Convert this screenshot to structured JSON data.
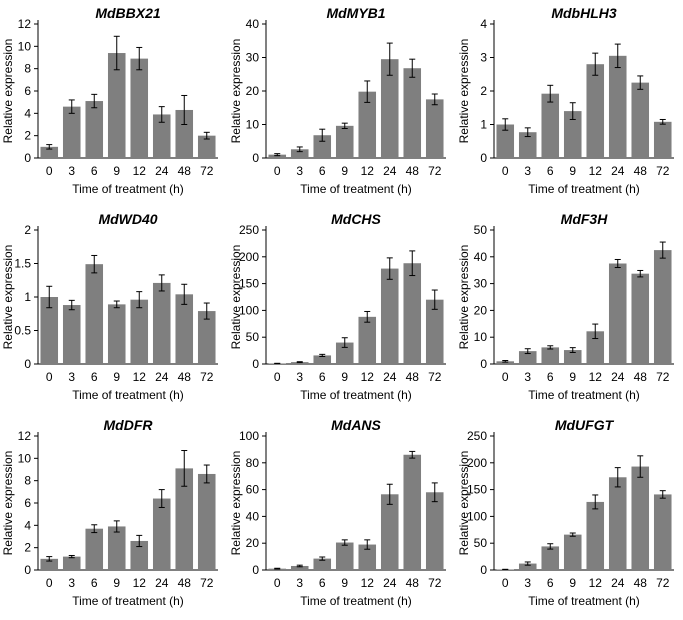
{
  "chart_data": [
    {
      "type": "bar",
      "title": "MdBBX21",
      "xlabel": "Time of treatment (h)",
      "ylabel": "Relative expression",
      "categories": [
        "0",
        "3",
        "6",
        "9",
        "12",
        "24",
        "48",
        "72"
      ],
      "values": [
        1.0,
        4.6,
        5.1,
        9.4,
        8.9,
        3.9,
        4.3,
        2.0
      ],
      "errors": [
        0.2,
        0.6,
        0.6,
        1.5,
        1.0,
        0.7,
        1.3,
        0.3
      ],
      "ylim": [
        0,
        12
      ],
      "yticks": [
        "0",
        "2",
        "4",
        "6",
        "8",
        "10",
        "12"
      ]
    },
    {
      "type": "bar",
      "title": "MdMYB1",
      "xlabel": "Time of treatment (h)",
      "ylabel": "Relative expression",
      "categories": [
        "0",
        "3",
        "6",
        "9",
        "12",
        "24",
        "48",
        "72"
      ],
      "values": [
        1.0,
        2.6,
        6.8,
        9.6,
        19.8,
        29.5,
        26.8,
        17.5
      ],
      "errors": [
        0.3,
        0.7,
        1.8,
        0.8,
        3.2,
        4.8,
        2.7,
        1.6
      ],
      "ylim": [
        0,
        40
      ],
      "yticks": [
        "0",
        "10",
        "20",
        "30",
        "40"
      ]
    },
    {
      "type": "bar",
      "title": "MdbHLH3",
      "xlabel": "Time of treatment (h)",
      "ylabel": "Relative expression",
      "categories": [
        "0",
        "3",
        "6",
        "9",
        "12",
        "24",
        "48",
        "72"
      ],
      "values": [
        1.0,
        0.77,
        1.92,
        1.4,
        2.8,
        3.05,
        2.25,
        1.08
      ],
      "errors": [
        0.17,
        0.13,
        0.25,
        0.25,
        0.33,
        0.35,
        0.2,
        0.07
      ],
      "ylim": [
        0,
        4
      ],
      "yticks": [
        "0",
        "1",
        "2",
        "3",
        "4"
      ]
    },
    {
      "type": "bar",
      "title": "MdWD40",
      "xlabel": "Time of treatment (h)",
      "ylabel": "Relative expression",
      "categories": [
        "0",
        "3",
        "6",
        "9",
        "12",
        "24",
        "48",
        "72"
      ],
      "values": [
        1.0,
        0.88,
        1.49,
        0.89,
        0.96,
        1.21,
        1.04,
        0.79
      ],
      "errors": [
        0.16,
        0.07,
        0.13,
        0.05,
        0.12,
        0.12,
        0.15,
        0.12
      ],
      "ylim": [
        0,
        2
      ],
      "yticks": [
        "0",
        "0.5",
        "1",
        "1.5",
        "2"
      ]
    },
    {
      "type": "bar",
      "title": "MdCHS",
      "xlabel": "Time of treatment (h)",
      "ylabel": "Relative expression",
      "categories": [
        "0",
        "3",
        "6",
        "9",
        "12",
        "24",
        "48",
        "72"
      ],
      "values": [
        1.0,
        3.5,
        16,
        40,
        88,
        178,
        188,
        120
      ],
      "errors": [
        0.3,
        0.8,
        2,
        9,
        10,
        20,
        23,
        18
      ],
      "ylim": [
        0,
        250
      ],
      "yticks": [
        "0",
        "50",
        "100",
        "150",
        "200",
        "250"
      ]
    },
    {
      "type": "bar",
      "title": "MdF3H",
      "xlabel": "Time of treatment (h)",
      "ylabel": "Relative expression",
      "categories": [
        "0",
        "3",
        "6",
        "9",
        "12",
        "24",
        "48",
        "72"
      ],
      "values": [
        1.0,
        4.8,
        6.2,
        5.2,
        12.2,
        37.5,
        33.7,
        42.5
      ],
      "errors": [
        0.3,
        0.9,
        0.6,
        0.9,
        2.7,
        1.5,
        1.2,
        3.0
      ],
      "ylim": [
        0,
        50
      ],
      "yticks": [
        "0",
        "10",
        "20",
        "30",
        "40",
        "50"
      ]
    },
    {
      "type": "bar",
      "title": "MdDFR",
      "xlabel": "Time of treatment (h)",
      "ylabel": "Relative expression",
      "categories": [
        "0",
        "3",
        "6",
        "9",
        "12",
        "24",
        "48",
        "72"
      ],
      "values": [
        1.0,
        1.2,
        3.7,
        3.9,
        2.6,
        6.4,
        9.1,
        8.6
      ],
      "errors": [
        0.2,
        0.1,
        0.35,
        0.5,
        0.5,
        0.8,
        1.6,
        0.8
      ],
      "ylim": [
        0,
        12
      ],
      "yticks": [
        "0",
        "2",
        "4",
        "6",
        "8",
        "10",
        "12"
      ]
    },
    {
      "type": "bar",
      "title": "MdANS",
      "xlabel": "Time of treatment (h)",
      "ylabel": "Relative expression",
      "categories": [
        "0",
        "3",
        "6",
        "9",
        "12",
        "24",
        "48",
        "72"
      ],
      "values": [
        1.0,
        3.0,
        8.5,
        20.5,
        19.0,
        56.5,
        86.0,
        58.0
      ],
      "errors": [
        0.3,
        0.6,
        1.2,
        2.0,
        3.5,
        7.5,
        2.5,
        7.0
      ],
      "ylim": [
        0,
        100
      ],
      "yticks": [
        "0",
        "20",
        "40",
        "60",
        "80",
        "100"
      ]
    },
    {
      "type": "bar",
      "title": "MdUFGT",
      "xlabel": "Time of treatment (h)",
      "ylabel": "Relative expression",
      "categories": [
        "0",
        "3",
        "6",
        "9",
        "12",
        "24",
        "48",
        "72"
      ],
      "values": [
        1.0,
        12,
        44,
        66,
        127,
        173,
        193,
        141
      ],
      "errors": [
        0.3,
        3,
        5,
        3,
        13,
        18,
        20,
        7
      ],
      "ylim": [
        0,
        250
      ],
      "yticks": [
        "0",
        "50",
        "100",
        "150",
        "200",
        "250"
      ]
    }
  ]
}
